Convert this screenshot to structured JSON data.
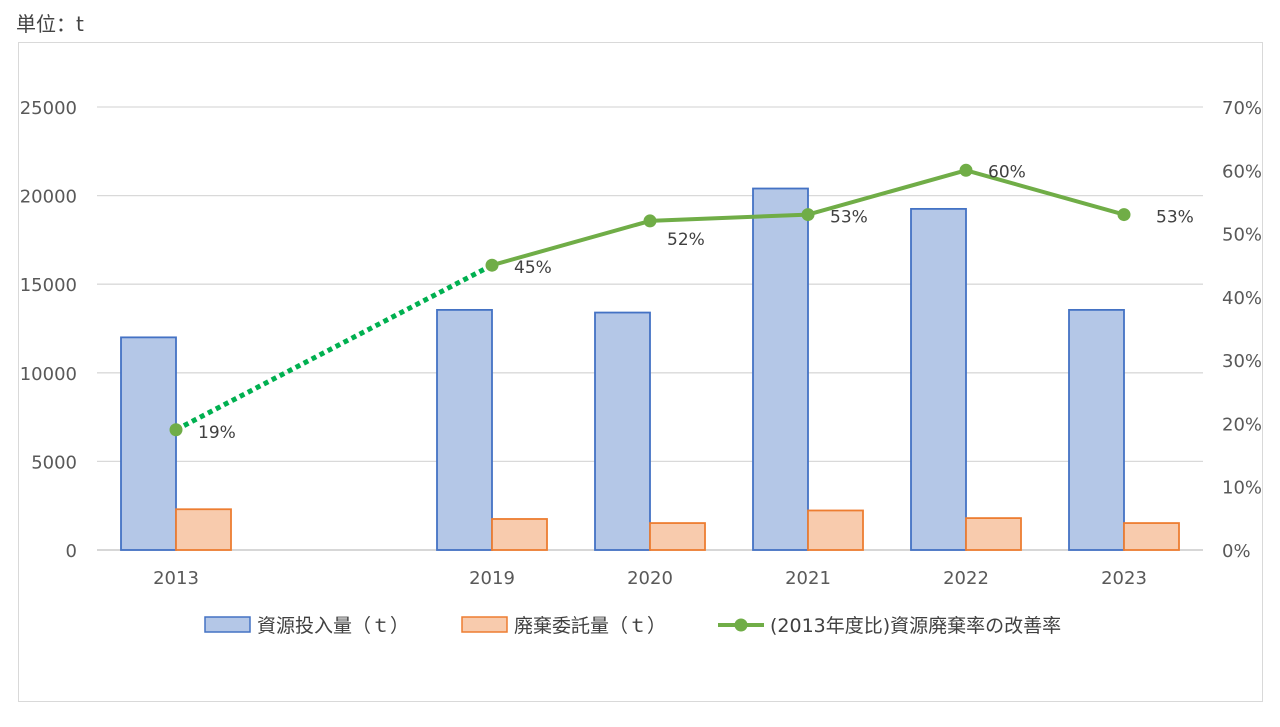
{
  "unit_label": "単位：t",
  "chart_data": {
    "type": "bar",
    "categories": [
      "2013",
      "2019",
      "2020",
      "2021",
      "2022",
      "2023"
    ],
    "category_slots": [
      0,
      2,
      3,
      4,
      5,
      6
    ],
    "series": [
      {
        "name": "資源投入量（ｔ）",
        "type": "bar",
        "axis": "left",
        "values": [
          12000,
          13550,
          13400,
          20400,
          19250,
          13550
        ],
        "color": "#b4c7e7",
        "stroke": "#4472c4"
      },
      {
        "name": "廃棄委託量（ｔ）",
        "type": "bar",
        "axis": "left",
        "values": [
          2300,
          1750,
          1520,
          2230,
          1800,
          1520
        ],
        "color": "#f8cbad",
        "stroke": "#ed7d31"
      },
      {
        "name": "(2013年度比)資源廃棄率の改善率",
        "type": "line",
        "axis": "right",
        "values": [
          0.19,
          0.45,
          0.52,
          0.53,
          0.6,
          0.53
        ],
        "labels": [
          "19%",
          "45%",
          "52%",
          "53%",
          "60%",
          "53%"
        ],
        "color": "#70ad47",
        "dashed_segment_color": "#00b050"
      }
    ],
    "y_left": {
      "ticks": [
        "0",
        "5000",
        "10000",
        "15000",
        "20000",
        "25000"
      ],
      "ylim": [
        0,
        25000
      ]
    },
    "y_right": {
      "ticks": [
        "0%",
        "10%",
        "20%",
        "30%",
        "40%",
        "50%",
        "60%",
        "70%"
      ],
      "ylim": [
        0,
        0.7
      ]
    },
    "grid": true,
    "legend_position": "bottom"
  }
}
